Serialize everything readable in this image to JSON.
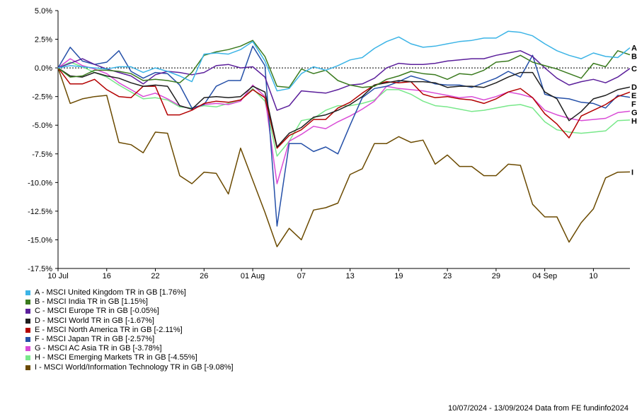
{
  "chart_data": {
    "type": "line",
    "title": "",
    "xlabel": "",
    "ylabel": "",
    "ylim": [
      -17.5,
      5.0
    ],
    "y_ticks": [
      "5.0%",
      "2.5%",
      "0.0%",
      "-2.5%",
      "-5.0%",
      "-7.5%",
      "-10.0%",
      "-12.5%",
      "-15.0%",
      "-17.5%"
    ],
    "y_tick_values": [
      5.0,
      2.5,
      0.0,
      -2.5,
      -5.0,
      -7.5,
      -10.0,
      -12.5,
      -15.0,
      -17.5
    ],
    "x_ticks": [
      {
        "label": "10 Jul",
        "index": 0
      },
      {
        "label": "16",
        "index": 4
      },
      {
        "label": "22",
        "index": 8
      },
      {
        "label": "26",
        "index": 12
      },
      {
        "label": "01 Aug",
        "index": 16
      },
      {
        "label": "07",
        "index": 20
      },
      {
        "label": "13",
        "index": 24
      },
      {
        "label": "19",
        "index": 28
      },
      {
        "label": "23",
        "index": 32
      },
      {
        "label": "29",
        "index": 36
      },
      {
        "label": "04 Sep",
        "index": 40
      },
      {
        "label": "10",
        "index": 44
      }
    ],
    "x": [
      "10 Jul",
      "11 Jul",
      "12 Jul",
      "15 Jul",
      "16 Jul",
      "17 Jul",
      "18 Jul",
      "19 Jul",
      "22 Jul",
      "23 Jul",
      "24 Jul",
      "25 Jul",
      "26 Jul",
      "29 Jul",
      "30 Jul",
      "31 Jul",
      "01 Aug",
      "02 Aug",
      "05 Aug",
      "06 Aug",
      "07 Aug",
      "08 Aug",
      "09 Aug",
      "12 Aug",
      "13 Aug",
      "14 Aug",
      "15 Aug",
      "16 Aug",
      "19 Aug",
      "20 Aug",
      "21 Aug",
      "22 Aug",
      "23 Aug",
      "26 Aug",
      "27 Aug",
      "28 Aug",
      "29 Aug",
      "30 Aug",
      "02 Sep",
      "03 Sep",
      "04 Sep",
      "05 Sep",
      "06 Sep",
      "09 Sep",
      "10 Sep",
      "11 Sep",
      "12 Sep",
      "13 Sep"
    ],
    "zero_line": "dashed",
    "legend_position": "bottom-left",
    "series": [
      {
        "label": "A",
        "name": "A - MSCI United Kingdom TR in GB [1.76%]",
        "color": "#3cb4e6",
        "values": [
          0,
          0.2,
          0.1,
          0,
          -0.1,
          0.1,
          0.1,
          -0.4,
          0,
          -0.3,
          -0.7,
          -1.2,
          1.2,
          1.3,
          1.2,
          1.6,
          2.3,
          0.6,
          -2,
          -1.8,
          -0.5,
          0.1,
          -0.2,
          0.2,
          0.7,
          0.9,
          1.7,
          2.3,
          2.7,
          2.1,
          1.8,
          1.9,
          2.1,
          2.3,
          2.4,
          2.6,
          2.6,
          3.2,
          3.1,
          2.8,
          2.1,
          1.5,
          1.1,
          0.8,
          1.3,
          1,
          0.9,
          1.76
        ]
      },
      {
        "label": "B",
        "name": "B - MSCI India TR in GB [1.15%]",
        "color": "#3a7a1e",
        "values": [
          0,
          -0.8,
          -0.7,
          -0.2,
          -0.2,
          -0.3,
          -0.5,
          -1.1,
          -1,
          -1.1,
          -1.3,
          -0.4,
          1.1,
          1.4,
          1.6,
          1.9,
          2.4,
          1,
          -1.6,
          -1.7,
          -0.1,
          -0.5,
          -0.2,
          -1.1,
          -1.5,
          -1.7,
          -1.6,
          -1,
          -0.7,
          -0.3,
          -0.5,
          -0.6,
          -1,
          -0.5,
          -0.6,
          -0.2,
          0.5,
          0.6,
          1.1,
          0.5,
          0.2,
          -0.1,
          -0.5,
          -0.9,
          0.4,
          0.1,
          1.5,
          1.15
        ]
      },
      {
        "label": "C",
        "name": "C - MSCI Europe TR in GB [-0.05%]",
        "color": "#5b1f9b",
        "values": [
          0,
          0.4,
          0.8,
          0.3,
          -0.1,
          -0.4,
          -0.7,
          -1.4,
          -0.6,
          -0.3,
          -0.4,
          -0.6,
          -0.4,
          0.2,
          0.3,
          0,
          0.1,
          -0.8,
          -3.7,
          -3.3,
          -2,
          -2.1,
          -2.2,
          -1.9,
          -1.5,
          -1.4,
          -0.9,
          0,
          0.4,
          0.3,
          0.3,
          0.4,
          0.6,
          0.7,
          0.8,
          0.8,
          1.1,
          1.3,
          1.5,
          1,
          0,
          -0.9,
          -1.5,
          -1.2,
          -1,
          -1.3,
          -0.8,
          -0.05
        ]
      },
      {
        "label": "D",
        "name": "D - MSCI World TR in GB [-1.67%]",
        "color": "#1e1e1e",
        "values": [
          0,
          -0.7,
          -0.8,
          -0.4,
          -0.7,
          -0.9,
          -1.3,
          -1.6,
          -1.5,
          -1.6,
          -3.3,
          -3.6,
          -2.6,
          -2.5,
          -2.6,
          -2.5,
          -1.6,
          -2.1,
          -6.9,
          -5.7,
          -5.2,
          -4.3,
          -4.1,
          -3.7,
          -3.2,
          -2.5,
          -1.5,
          -1.3,
          -1.1,
          -1.2,
          -1.2,
          -1.3,
          -1.7,
          -1.6,
          -1.6,
          -1.7,
          -1.3,
          -0.8,
          -0.4,
          -0.4,
          -2.1,
          -2.7,
          -4.6,
          -3.8,
          -2.7,
          -2.4,
          -1.9,
          -1.67
        ]
      },
      {
        "label": "E",
        "name": "E - MSCI North America TR in GB [-2.11%]",
        "color": "#b30000",
        "values": [
          0,
          -1.4,
          -1.4,
          -1,
          -1.9,
          -2.5,
          -2.6,
          -1.6,
          -1.6,
          -4.1,
          -4.1,
          -3.7,
          -3.1,
          -2.9,
          -3,
          -2.8,
          -1.9,
          -2.6,
          -7,
          -5.9,
          -5.4,
          -4.5,
          -4.5,
          -3.5,
          -3,
          -2.2,
          -1.5,
          -1.2,
          -1.3,
          -1.2,
          -2.3,
          -2.6,
          -2.5,
          -2.7,
          -2.8,
          -3.1,
          -2.7,
          -2.1,
          -1.8,
          -2.6,
          -4,
          -4.9,
          -6.1,
          -4.2,
          -3.7,
          -3.2,
          -2.5,
          -2.11
        ]
      },
      {
        "label": "F",
        "name": "F - MSCI Japan TR in GB [-2.57%]",
        "color": "#2550a8",
        "values": [
          0,
          1.8,
          0.6,
          0.3,
          0.5,
          1.5,
          -0.3,
          -0.9,
          -0.4,
          -0.5,
          -1.5,
          -3.5,
          -3.2,
          -1.6,
          -1.1,
          -1.1,
          1.9,
          0.2,
          -13.8,
          -6.6,
          -6.6,
          -7.3,
          -6.9,
          -7.5,
          -5,
          -2.6,
          -1.8,
          -1.6,
          -1.2,
          -0.7,
          -1,
          -1.4,
          -1.5,
          -1.5,
          -1.7,
          -1.3,
          -0.9,
          -0.3,
          -0.8,
          1.1,
          -2.3,
          -2.6,
          -2.7,
          -3,
          -3.1,
          -3.5,
          -2.4,
          -2.57
        ]
      },
      {
        "label": "G",
        "name": "G - MSCI AC Asia TR in GB [-3.78%]",
        "color": "#d94bd6",
        "values": [
          0,
          0.8,
          0.2,
          -0.1,
          -0.5,
          -1.3,
          -1.9,
          -2.5,
          -2.2,
          -2.7,
          -3.3,
          -3.6,
          -3.2,
          -3.1,
          -3.2,
          -2.9,
          -1.5,
          -2.5,
          -10.1,
          -6.4,
          -5.8,
          -5.1,
          -5.3,
          -4.7,
          -4.2,
          -3.6,
          -2.9,
          -1.6,
          -1.8,
          -1.9,
          -2,
          -2.2,
          -2.4,
          -2.6,
          -2.5,
          -2.8,
          -2.5,
          -2.1,
          -2.3,
          -2.6,
          -3.7,
          -4.1,
          -4.4,
          -4.6,
          -4.5,
          -4.4,
          -3.9,
          -3.78
        ]
      },
      {
        "label": "H",
        "name": "H - MSCI Emerging Markets TR in GB [-4.55%]",
        "color": "#78e88a",
        "values": [
          0,
          0.5,
          0.1,
          -0.4,
          -0.8,
          -1.5,
          -2.1,
          -2.7,
          -2.6,
          -2.8,
          -3.4,
          -3.5,
          -3.3,
          -3.4,
          -3.1,
          -2.8,
          -1.8,
          -2.9,
          -7.7,
          -6.4,
          -4.6,
          -4.4,
          -3.7,
          -3.3,
          -3.3,
          -3.1,
          -2.8,
          -1.9,
          -1.9,
          -2.3,
          -2.9,
          -3.3,
          -3.4,
          -3.6,
          -3.8,
          -3.7,
          -3.5,
          -3.3,
          -3.2,
          -3.5,
          -4.7,
          -5.4,
          -5.6,
          -5.7,
          -5.6,
          -5.5,
          -4.6,
          -4.55
        ]
      },
      {
        "label": "I",
        "name": "I - MSCI World/Information Technology TR in GB [-9.08%]",
        "color": "#6b4a00",
        "values": [
          0,
          -3.1,
          -2.7,
          -2.5,
          -2.4,
          -6.5,
          -6.7,
          -7.4,
          -5.6,
          -5.7,
          -9.4,
          -10.1,
          -9.1,
          -9.2,
          -11,
          -7,
          -9.8,
          -12.6,
          -15.6,
          -14,
          -15,
          -12.4,
          -12.2,
          -11.8,
          -9.3,
          -8.8,
          -6.6,
          -6.6,
          -6,
          -6.5,
          -6.3,
          -8.4,
          -7.6,
          -8.6,
          -8.6,
          -9.4,
          -9.4,
          -8.4,
          -8.5,
          -11.9,
          -13,
          -13,
          -15.2,
          -13.5,
          -12.3,
          -9.6,
          -9.1,
          -9.08
        ]
      }
    ]
  },
  "footer": {
    "text": "10/07/2024 - 13/09/2024 Data from FE fundinfo2024"
  }
}
